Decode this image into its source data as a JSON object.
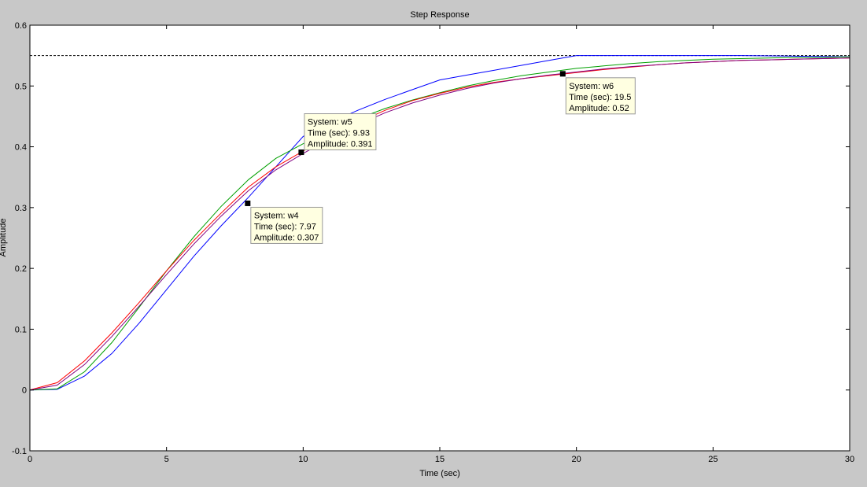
{
  "chart_data": {
    "type": "line",
    "title": "Step Response",
    "xlabel": "Time (sec)",
    "ylabel": "Amplitude",
    "xlim": [
      0,
      30
    ],
    "ylim": [
      -0.1,
      0.6
    ],
    "xticks": [
      0,
      5,
      10,
      15,
      20,
      25,
      30
    ],
    "yticks": [
      -0.1,
      0,
      0.1,
      0.2,
      0.3,
      0.4,
      0.5,
      0.6
    ],
    "xtick_labels": [
      "0",
      "5",
      "10",
      "15",
      "20",
      "25",
      "30"
    ],
    "ytick_labels": [
      "-0.1",
      "0",
      "0.1",
      "0.2",
      "0.3",
      "0.4",
      "0.5",
      "0.6"
    ],
    "grid": false,
    "steady_state": 0.55,
    "series": [
      {
        "color": "#0000ff",
        "x": [
          0,
          1,
          2,
          3,
          4,
          5,
          6,
          7,
          8,
          9,
          10,
          11,
          12,
          13,
          14,
          15,
          16,
          17,
          18,
          19,
          20,
          22,
          24,
          26,
          28,
          30
        ],
        "y": [
          0,
          0.001,
          0.023,
          0.06,
          0.11,
          0.165,
          0.22,
          0.27,
          0.317,
          0.367,
          0.417,
          0.44,
          0.46,
          0.478,
          0.494,
          0.51,
          0.518,
          0.526,
          0.534,
          0.542,
          0.55,
          0.55,
          0.55,
          0.55,
          0.549,
          0.548
        ]
      },
      {
        "color": "#00a000",
        "x": [
          0,
          1,
          2,
          3,
          4,
          5,
          6,
          7,
          8,
          9,
          10,
          11,
          12,
          13,
          14,
          15,
          16,
          17,
          18,
          19,
          20,
          21,
          22,
          23,
          24,
          25,
          26,
          27,
          28,
          29,
          30
        ],
        "y": [
          0,
          0.002,
          0.03,
          0.078,
          0.136,
          0.196,
          0.252,
          0.302,
          0.346,
          0.381,
          0.405,
          0.427,
          0.446,
          0.463,
          0.477,
          0.489,
          0.5,
          0.509,
          0.517,
          0.523,
          0.529,
          0.533,
          0.537,
          0.54,
          0.542,
          0.544,
          0.545,
          0.546,
          0.547,
          0.547,
          0.548
        ]
      },
      {
        "color": "#ff0000",
        "x": [
          0,
          1,
          2,
          3,
          4,
          5,
          6,
          7,
          8,
          9,
          10,
          11,
          12,
          13,
          14,
          15,
          16,
          17,
          18,
          19,
          20,
          21,
          22,
          23,
          24,
          25,
          26,
          27,
          28,
          29,
          30
        ],
        "y": [
          0,
          0.012,
          0.048,
          0.094,
          0.144,
          0.196,
          0.246,
          0.291,
          0.334,
          0.367,
          0.393,
          0.418,
          0.44,
          0.46,
          0.476,
          0.488,
          0.498,
          0.506,
          0.512,
          0.517,
          0.522,
          0.527,
          0.531,
          0.535,
          0.538,
          0.54,
          0.542,
          0.543,
          0.544,
          0.545,
          0.546
        ]
      },
      {
        "color": "#800080",
        "x": [
          0,
          1,
          2,
          3,
          4,
          5,
          6,
          7,
          8,
          9,
          10,
          11,
          12,
          13,
          14,
          15,
          16,
          17,
          18,
          19,
          20,
          21,
          22,
          23,
          24,
          25,
          26,
          27,
          28,
          29,
          30
        ],
        "y": [
          0,
          0.008,
          0.042,
          0.088,
          0.138,
          0.19,
          0.24,
          0.286,
          0.328,
          0.362,
          0.389,
          0.414,
          0.436,
          0.456,
          0.472,
          0.485,
          0.496,
          0.505,
          0.512,
          0.518,
          0.523,
          0.528,
          0.532,
          0.535,
          0.538,
          0.54,
          0.542,
          0.543,
          0.544,
          0.545,
          0.546
        ]
      }
    ],
    "annotations": [
      {
        "x": 7.97,
        "y": 0.307,
        "lines": [
          "System: w4",
          "Time (sec): 7.97",
          "Amplitude: 0.307"
        ]
      },
      {
        "x": 9.93,
        "y": 0.391,
        "lines": [
          "System: w5",
          "Time (sec): 9.93",
          "Amplitude: 0.391"
        ]
      },
      {
        "x": 19.5,
        "y": 0.52,
        "lines": [
          "System: w6",
          "Time (sec): 19.5",
          "Amplitude: 0.52"
        ]
      }
    ]
  }
}
